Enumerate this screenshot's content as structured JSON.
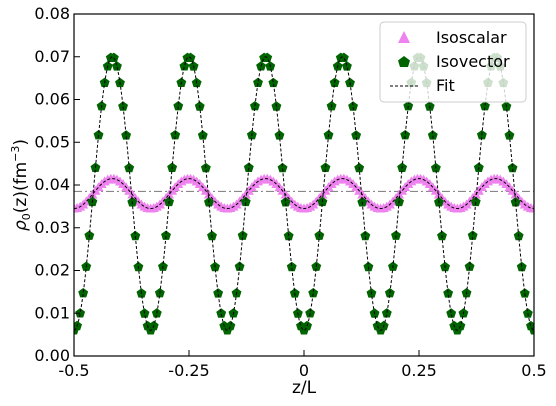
{
  "chart_data": {
    "type": "scatter",
    "xlabel": "z/L",
    "ylabel_parts": {
      "rho": "ρ",
      "sub": "0",
      "args": "(z)(fm",
      "sup": "−3",
      "close": ")"
    },
    "xlim": [
      -0.5,
      0.5
    ],
    "ylim": [
      0.0,
      0.08
    ],
    "x_ticks": [
      -0.5,
      -0.25,
      0,
      0.25,
      0.5
    ],
    "x_tick_labels": [
      "-0.5",
      "-0.25",
      "0",
      "0.25",
      "0.5"
    ],
    "y_ticks": [
      0.0,
      0.01,
      0.02,
      0.03,
      0.04,
      0.05,
      0.06,
      0.07,
      0.08
    ],
    "y_tick_labels": [
      "0.00",
      "0.01",
      "0.02",
      "0.03",
      "0.04",
      "0.05",
      "0.06",
      "0.07",
      "0.08"
    ],
    "grid": false,
    "legend_position": "top-right",
    "series": [
      {
        "name": "Isoscalar",
        "marker": "triangle",
        "color": "#ee82ee",
        "model": {
          "mean": 0.038,
          "amplitude": 0.0035,
          "periods": 6,
          "phase_x": 0.0833
        },
        "n_points": 151
      },
      {
        "name": "Isovector",
        "marker": "pentagon",
        "color": "#006400",
        "model": {
          "mean": 0.038,
          "amplitude": 0.032,
          "periods": 6,
          "phase_x": 0.0833
        },
        "n_points": 151
      },
      {
        "name": "Fit",
        "marker": "dashed-line",
        "color": "#000000"
      }
    ],
    "reference_line": {
      "y": 0.0385,
      "style": "dash-dot",
      "color": "#888888"
    }
  }
}
